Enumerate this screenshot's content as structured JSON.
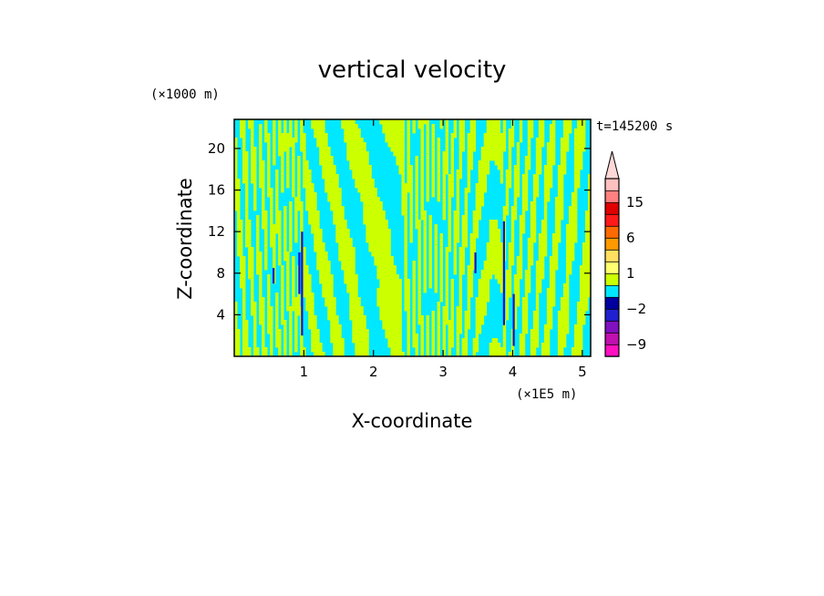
{
  "chart_data": {
    "type": "heatmap",
    "title": "vertical velocity",
    "xlabel": "X-coordinate",
    "ylabel": "Z-coordinate",
    "x_unit_label": "(×1E5 m)",
    "y_unit_label": "(×1000 m)",
    "time_label": "t=145200 s",
    "xlim": [
      0,
      5.12
    ],
    "ylim": [
      0,
      22.8
    ],
    "x_ticks": [
      1,
      2,
      3,
      4,
      5
    ],
    "x_tick_labels": [
      "1",
      "2",
      "3",
      "4",
      "5"
    ],
    "y_ticks": [
      4,
      8,
      12,
      16,
      20
    ],
    "y_tick_labels": [
      "4",
      "8",
      "12",
      "16",
      "20"
    ],
    "colorbar": {
      "levels": [
        -12,
        -9,
        -6,
        -3,
        -2,
        -1,
        0,
        1,
        2,
        3,
        6,
        9,
        12,
        15,
        18,
        30
      ],
      "colors": [
        "#ff10c0",
        "#c010b0",
        "#8010c0",
        "#2020d0",
        "#0000a0",
        "#00e8ff",
        "#ccff00",
        "#ffff70",
        "#ffe060",
        "#ff9a00",
        "#ff6a00",
        "#ff1a1a",
        "#e00000",
        "#ff8080",
        "#ffc0c0"
      ],
      "tick_labels": [
        "-9",
        "-2",
        "1",
        "6",
        "15"
      ],
      "extend": "max"
    },
    "dominant_colors": {
      "positive": "#ccff00",
      "negative": "#00e8ff",
      "strong_negative": "#1010d0"
    }
  }
}
